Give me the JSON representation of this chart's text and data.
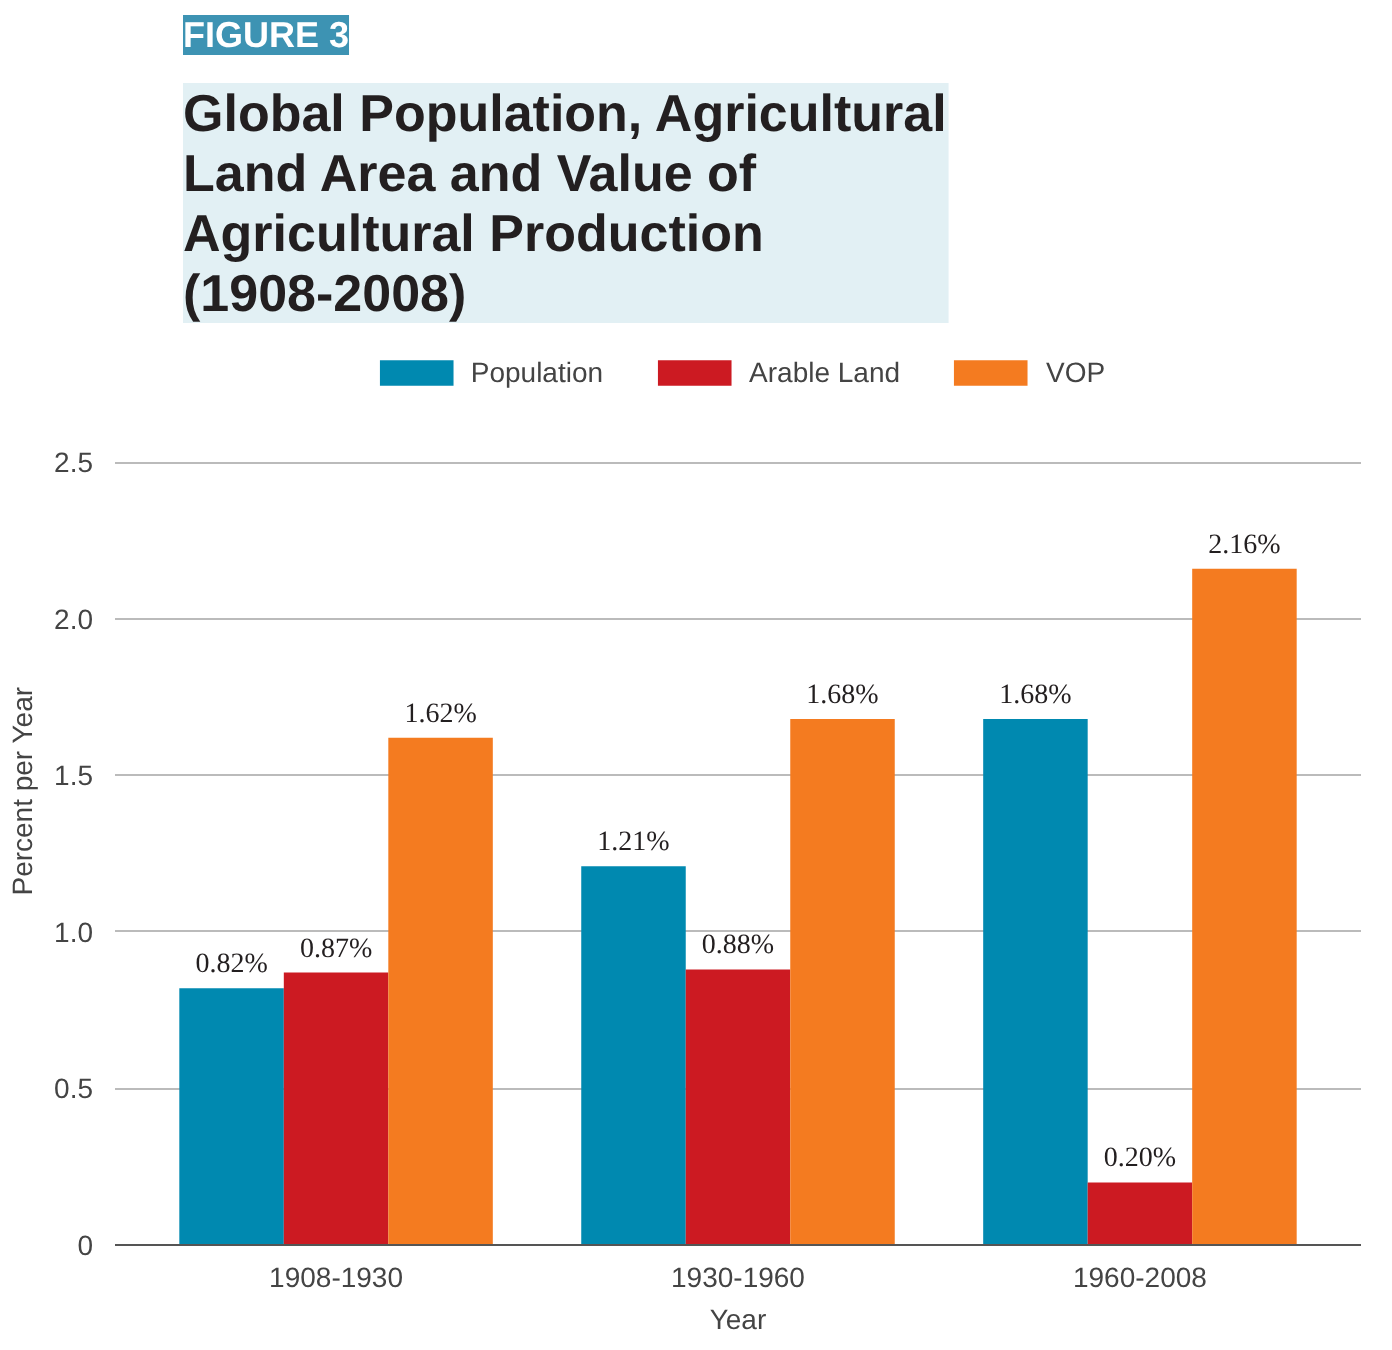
{
  "chart_data": {
    "type": "bar",
    "subtitle": "FIGURE 3",
    "title": "Global Population, Agricultural Land Area and Value of Agricultural Production (1908-2008)",
    "xlabel": "Year",
    "ylabel": "Percent per Year",
    "categories": [
      "1908-1930",
      "1930-1960",
      "1960-2008"
    ],
    "series": [
      {
        "name": "Population",
        "color": "#0089b0",
        "values": [
          0.82,
          1.21,
          1.68
        ],
        "value_labels": [
          "0.82%",
          "1.21%",
          "1.68%"
        ]
      },
      {
        "name": "Arable Land",
        "color": "#cc1a22",
        "values": [
          0.87,
          0.88,
          0.2
        ],
        "value_labels": [
          "0.87%",
          "0.88%",
          "0.20%"
        ]
      },
      {
        "name": "VOP",
        "color": "#f47b20",
        "values": [
          1.62,
          1.68,
          2.16
        ],
        "value_labels": [
          "1.62%",
          "1.68%",
          "2.16%"
        ]
      }
    ],
    "ylim": [
      0,
      2.5
    ],
    "yticks": [
      {
        "value": 0,
        "label": "0"
      },
      {
        "value": 0.5,
        "label": "0.5"
      },
      {
        "value": 1,
        "label": "1.0"
      },
      {
        "value": 1.5,
        "label": "1.5"
      },
      {
        "value": 2,
        "label": "2.0"
      },
      {
        "value": 2.5,
        "label": "2.5"
      }
    ],
    "grid": "y",
    "legend": "top"
  }
}
